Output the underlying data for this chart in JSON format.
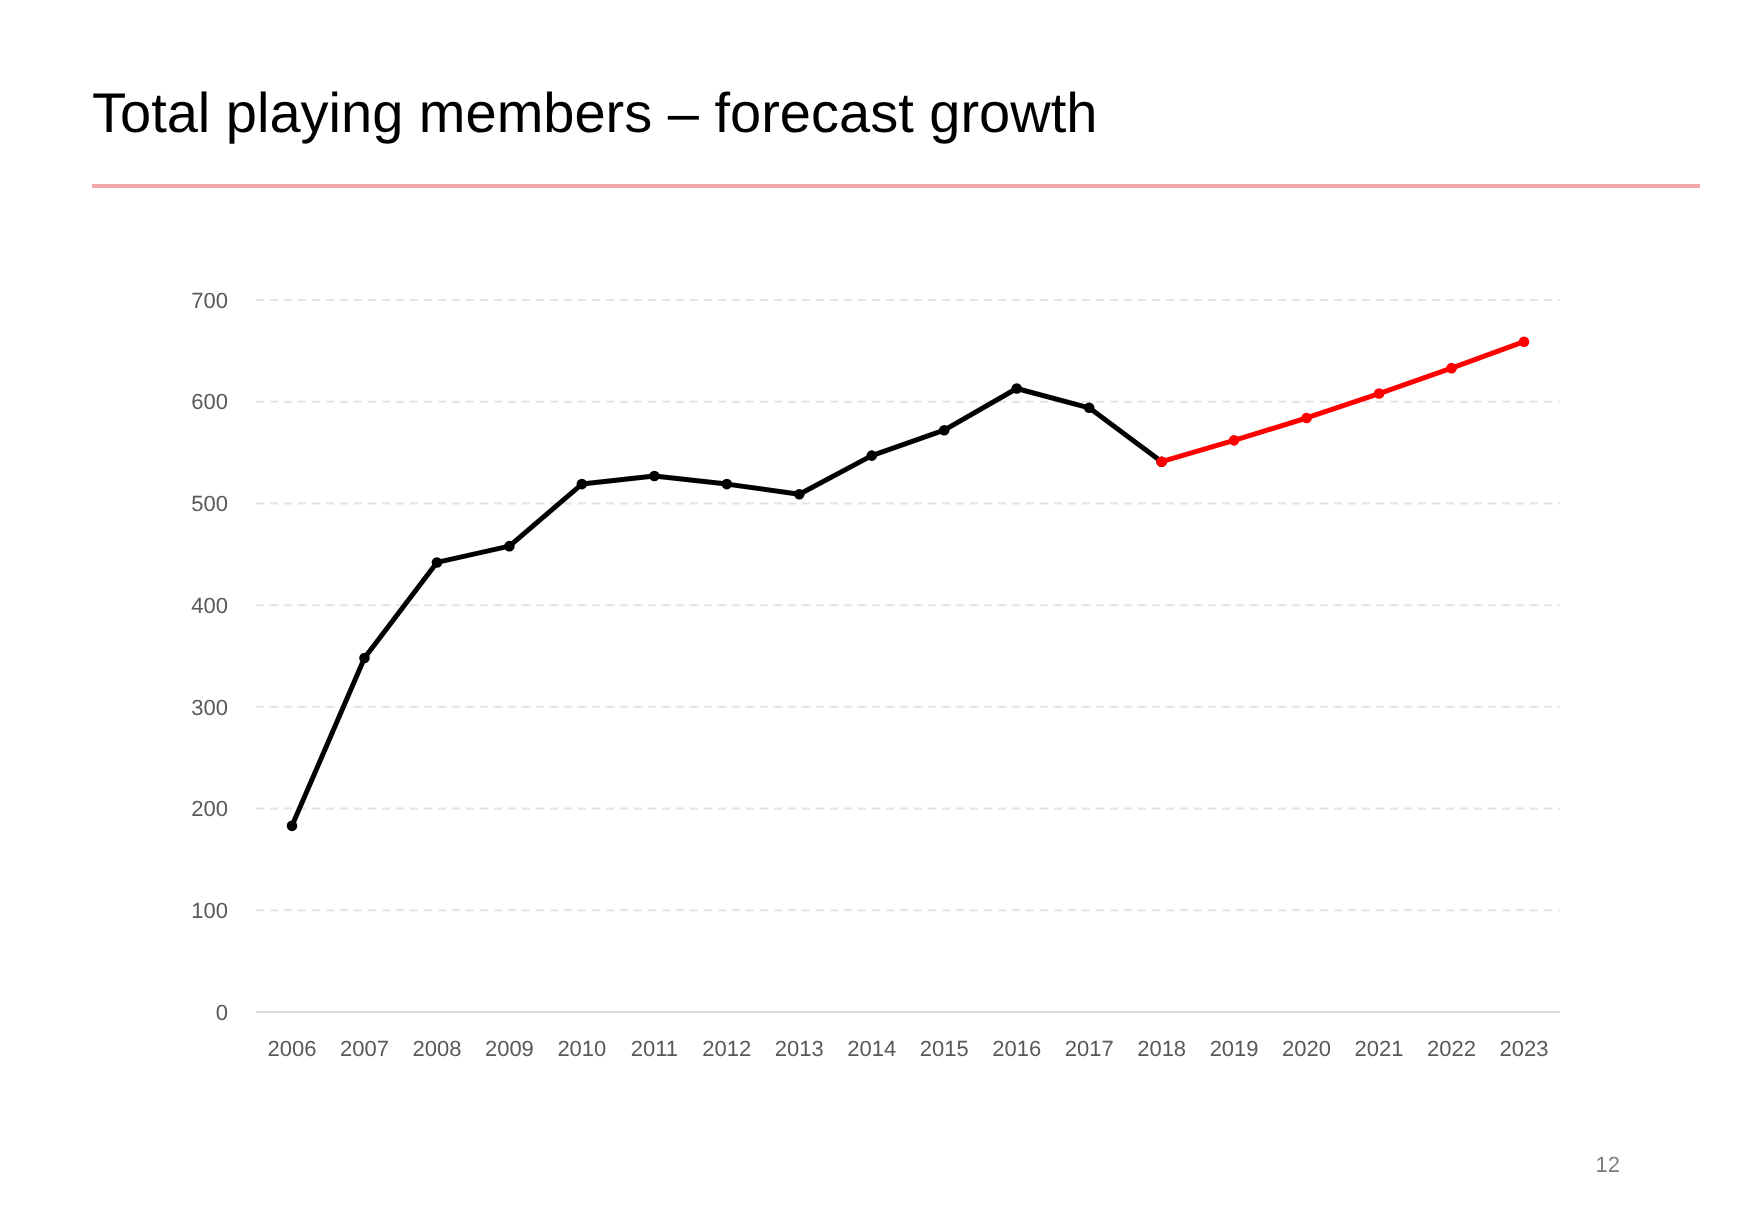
{
  "chart_data": {
    "type": "line",
    "title": "Total playing members – forecast growth",
    "categories": [
      "2006",
      "2007",
      "2008",
      "2009",
      "2010",
      "2011",
      "2012",
      "2013",
      "2014",
      "2015",
      "2016",
      "2017",
      "2018",
      "2019",
      "2020",
      "2021",
      "2022",
      "2023"
    ],
    "series": [
      {
        "color": "#000000",
        "values": [
          183,
          348,
          442,
          458,
          519,
          527,
          519,
          509,
          547,
          572,
          613,
          594,
          541,
          null,
          null,
          null,
          null,
          null
        ]
      },
      {
        "color": "#ff0000",
        "values": [
          null,
          null,
          null,
          null,
          null,
          null,
          null,
          null,
          null,
          null,
          null,
          null,
          541,
          562,
          584,
          608,
          633,
          659
        ]
      }
    ],
    "ylim": [
      0,
      700
    ],
    "yticks": [
      0,
      100,
      200,
      300,
      400,
      500,
      600,
      700
    ],
    "grid": "y",
    "marker": "circle",
    "line_style": "solid",
    "annotations": [
      "12"
    ]
  }
}
